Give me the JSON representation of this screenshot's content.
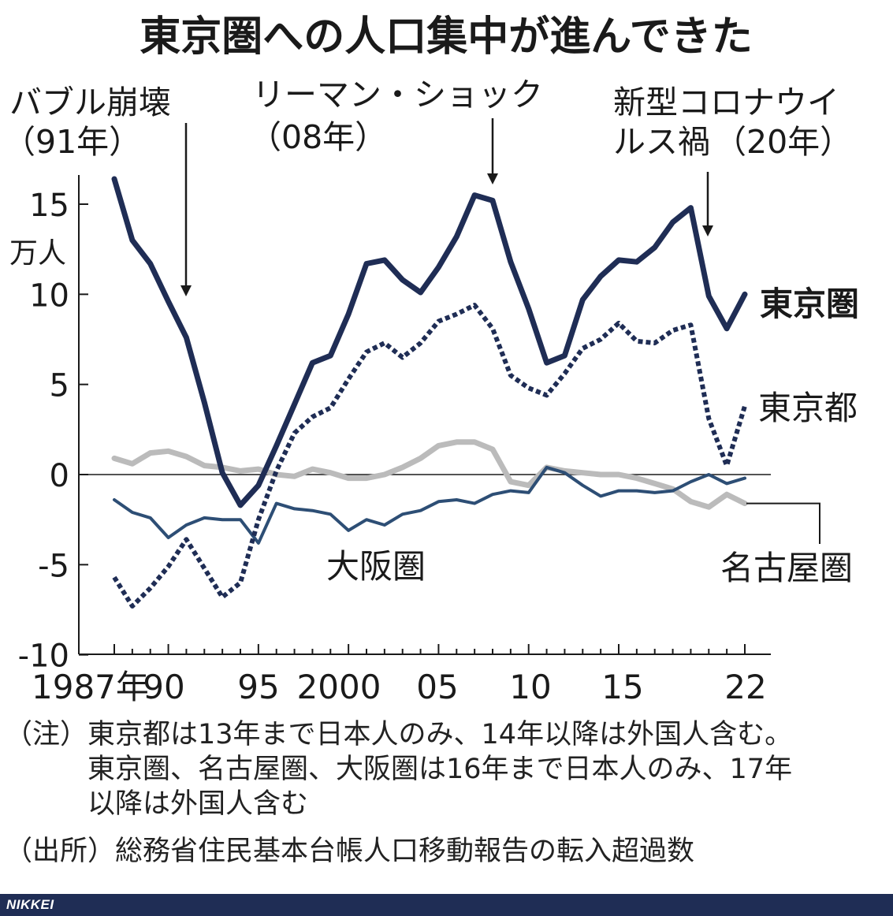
{
  "chart_data": {
    "type": "line",
    "title": "東京圏への人口集中が進んできた",
    "ylabel": "万人",
    "ylim": [
      -10,
      16.5
    ],
    "yticks": [
      15,
      10,
      5,
      0,
      -5,
      -10
    ],
    "ytick_labels": [
      "15",
      "10",
      "5",
      "0",
      "-5",
      "-10"
    ],
    "xlim": [
      1987,
      2022
    ],
    "xticks": [
      1987,
      1990,
      1995,
      2000,
      2005,
      2010,
      2015,
      2022
    ],
    "xtick_labels": [
      "1987年",
      "90",
      "95",
      "2000",
      "05",
      "10",
      "15",
      "22"
    ],
    "x": [
      1987,
      1988,
      1989,
      1990,
      1991,
      1992,
      1993,
      1994,
      1995,
      1996,
      1997,
      1998,
      1999,
      2000,
      2001,
      2002,
      2003,
      2004,
      2005,
      2006,
      2007,
      2008,
      2009,
      2010,
      2011,
      2012,
      2013,
      2014,
      2015,
      2016,
      2017,
      2018,
      2019,
      2020,
      2021,
      2022
    ],
    "series": [
      {
        "name": "東京圏",
        "color": "#1f2d55",
        "style": "solid",
        "width": 7,
        "values": [
          16.4,
          13.0,
          11.7,
          9.6,
          7.6,
          4.0,
          0.1,
          -1.7,
          -0.6,
          1.6,
          3.9,
          6.2,
          6.6,
          8.9,
          11.7,
          11.9,
          10.8,
          10.1,
          11.5,
          13.2,
          15.5,
          15.2,
          11.8,
          9.2,
          6.2,
          6.6,
          9.7,
          11.0,
          11.9,
          11.8,
          12.6,
          14.0,
          14.8,
          9.9,
          8.1,
          10.0
        ]
      },
      {
        "name": "東京都",
        "color": "#1f2d55",
        "style": "dotted",
        "width": 6,
        "values": [
          -5.7,
          -7.3,
          -6.3,
          -5.1,
          -3.6,
          -5.2,
          -6.8,
          -6.0,
          -2.5,
          0.2,
          2.3,
          3.2,
          3.7,
          5.3,
          6.8,
          7.3,
          6.5,
          7.3,
          8.5,
          8.9,
          9.4,
          8.1,
          5.5,
          4.8,
          4.4,
          5.6,
          7.0,
          7.5,
          8.4,
          7.4,
          7.3,
          8.0,
          8.3,
          3.1,
          0.5,
          3.8
        ]
      },
      {
        "name": "名古屋圏",
        "color": "#bbbbbb",
        "style": "solid",
        "width": 7,
        "values": [
          0.9,
          0.6,
          1.2,
          1.3,
          1.0,
          0.5,
          0.4,
          0.2,
          0.3,
          0.0,
          -0.1,
          0.3,
          0.1,
          -0.2,
          -0.2,
          0.0,
          0.4,
          0.9,
          1.6,
          1.8,
          1.8,
          1.4,
          -0.4,
          -0.6,
          0.4,
          0.2,
          0.1,
          0.0,
          0.0,
          -0.2,
          -0.5,
          -0.8,
          -1.5,
          -1.8,
          -1.1,
          -1.6
        ]
      },
      {
        "name": "大阪圏",
        "color": "#2d4e75",
        "style": "solid",
        "width": 4,
        "values": [
          -1.4,
          -2.1,
          -2.4,
          -3.5,
          -2.8,
          -2.4,
          -2.5,
          -2.5,
          -3.8,
          -1.6,
          -1.9,
          -2.0,
          -2.2,
          -3.1,
          -2.5,
          -2.8,
          -2.2,
          -2.0,
          -1.5,
          -1.4,
          -1.6,
          -1.1,
          -0.9,
          -1.0,
          0.4,
          0.1,
          -0.6,
          -1.2,
          -0.9,
          -0.9,
          -1.0,
          -0.9,
          -0.4,
          0.0,
          -0.5,
          -0.2
        ]
      }
    ],
    "annotations": [
      {
        "label": "バブル崩壊",
        "sub": "（91年）",
        "x": 1991
      },
      {
        "label": "リーマン・ショック",
        "sub": "（08年）",
        "x": 2008
      },
      {
        "label": "新型コロナウイ",
        "label2": "ルス禍",
        "sub": "（20年）",
        "x": 2020
      }
    ],
    "grid": false,
    "legend": "direct-labels"
  },
  "notes": [
    "（注）東京都は13年まで日本人のみ、14年以降は外国人含む。",
    "　　　東京圏、名古屋圏、大阪圏は16年まで日本人のみ、17年",
    "　　　以降は外国人含む",
    "（出所）総務省住民基本台帳人口移動報告の転入超過数"
  ],
  "footer_brand": "NIKKEI"
}
